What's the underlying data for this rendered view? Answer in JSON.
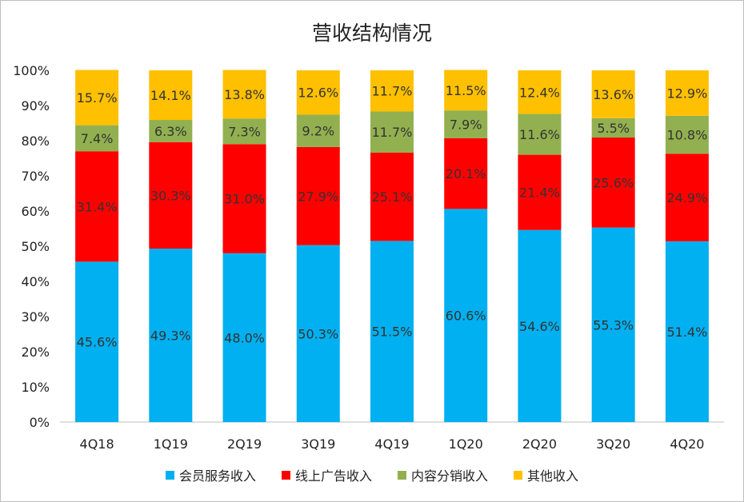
{
  "chart_data": {
    "type": "bar",
    "stacked": true,
    "title": "营收结构情况",
    "categories": [
      "4Q18",
      "1Q19",
      "2Q19",
      "3Q19",
      "4Q19",
      "1Q20",
      "2Q20",
      "3Q20",
      "4Q20"
    ],
    "y_ticks": [
      "0%",
      "10%",
      "20%",
      "30%",
      "40%",
      "50%",
      "60%",
      "70%",
      "80%",
      "90%",
      "100%"
    ],
    "ylim": [
      0,
      100
    ],
    "grid": false,
    "legend_position": "bottom",
    "series": [
      {
        "name": "会员服务收入",
        "color": "#00b0f0",
        "values": [
          45.6,
          49.3,
          48.0,
          50.3,
          51.5,
          60.6,
          54.6,
          55.3,
          51.4
        ],
        "labels": [
          "45.6%",
          "49.3%",
          "48.0%",
          "50.3%",
          "51.5%",
          "60.6%",
          "54.6%",
          "55.3%",
          "51.4%"
        ]
      },
      {
        "name": "线上广告收入",
        "color": "#ff0000",
        "values": [
          31.4,
          30.3,
          31.0,
          27.9,
          25.1,
          20.1,
          21.4,
          25.6,
          24.9
        ],
        "labels": [
          "31.4%",
          "30.3%",
          "31.0%",
          "27.9%",
          "25.1%",
          "20.1%",
          "21.4%",
          "25.6%",
          "24.9%"
        ]
      },
      {
        "name": "内容分销收入",
        "color": "#92b050",
        "values": [
          7.4,
          6.3,
          7.3,
          9.2,
          11.7,
          7.9,
          11.6,
          5.5,
          10.8
        ],
        "labels": [
          "7.4%",
          "6.3%",
          "7.3%",
          "9.2%",
          "11.7%",
          "7.9%",
          "11.6%",
          "5.5%",
          "10.8%"
        ]
      },
      {
        "name": "其他收入",
        "color": "#ffc000",
        "values": [
          15.7,
          14.1,
          13.8,
          12.6,
          11.7,
          11.5,
          12.4,
          13.6,
          12.9
        ],
        "labels": [
          "15.7%",
          "14.1%",
          "13.8%",
          "12.6%",
          "11.7%",
          "11.5%",
          "12.4%",
          "13.6%",
          "12.9%"
        ]
      }
    ]
  }
}
